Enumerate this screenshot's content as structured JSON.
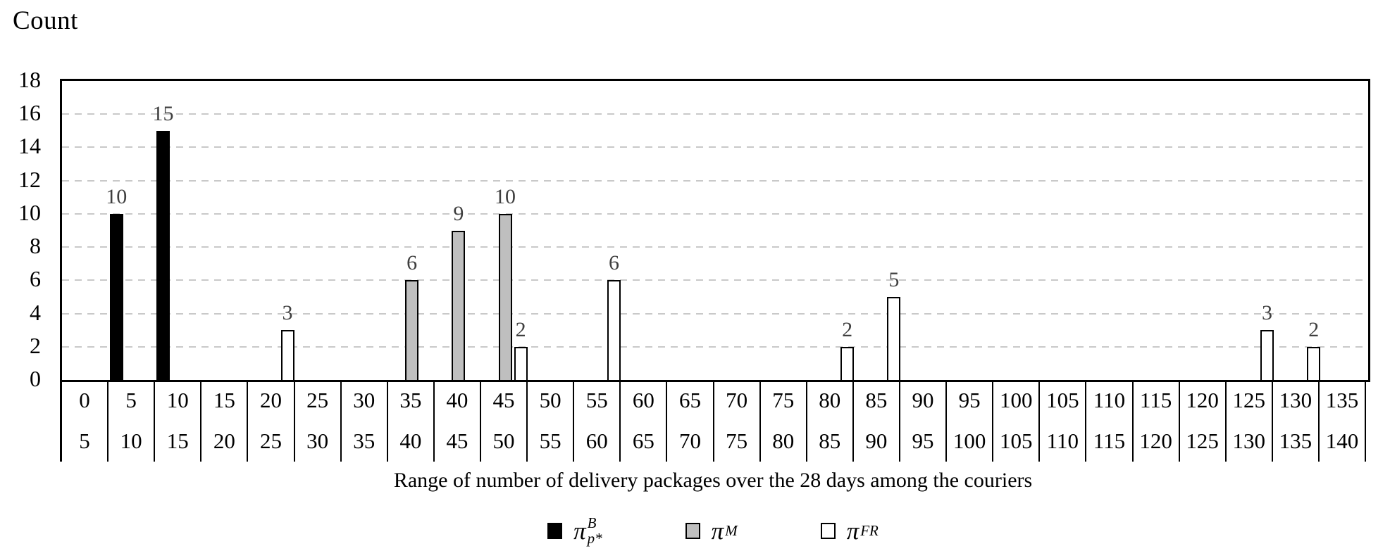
{
  "chart_data": {
    "type": "bar",
    "variant": "clustered-histogram",
    "title": "Count",
    "xlabel": "Range of number of delivery packages over the 28 days among the couriers",
    "ylabel": "Count",
    "ylim": [
      0,
      18
    ],
    "yticks": [
      0,
      2,
      4,
      6,
      8,
      10,
      12,
      14,
      16,
      18
    ],
    "grid": "horizontal-dashed",
    "grid_color": "#c9c9c9",
    "bar_label_color": "#3f3f3f",
    "legend_position": "bottom-center",
    "bins": [
      {
        "lo": "0",
        "hi": "5"
      },
      {
        "lo": "5",
        "hi": "10"
      },
      {
        "lo": "10",
        "hi": "15"
      },
      {
        "lo": "15",
        "hi": "20"
      },
      {
        "lo": "20",
        "hi": "25"
      },
      {
        "lo": "25",
        "hi": "30"
      },
      {
        "lo": "30",
        "hi": "35"
      },
      {
        "lo": "35",
        "hi": "40"
      },
      {
        "lo": "40",
        "hi": "45"
      },
      {
        "lo": "45",
        "hi": "50"
      },
      {
        "lo": "50",
        "hi": "55"
      },
      {
        "lo": "55",
        "hi": "60"
      },
      {
        "lo": "60",
        "hi": "65"
      },
      {
        "lo": "65",
        "hi": "70"
      },
      {
        "lo": "70",
        "hi": "75"
      },
      {
        "lo": "75",
        "hi": "80"
      },
      {
        "lo": "80",
        "hi": "85"
      },
      {
        "lo": "85",
        "hi": "90"
      },
      {
        "lo": "90",
        "hi": "95"
      },
      {
        "lo": "95",
        "hi": "100"
      },
      {
        "lo": "100",
        "hi": "105"
      },
      {
        "lo": "105",
        "hi": "110"
      },
      {
        "lo": "110",
        "hi": "115"
      },
      {
        "lo": "115",
        "hi": "120"
      },
      {
        "lo": "120",
        "hi": "125"
      },
      {
        "lo": "125",
        "hi": "130"
      },
      {
        "lo": "130",
        "hi": "135"
      },
      {
        "lo": "135",
        "hi": "140"
      }
    ],
    "series": [
      {
        "name": "pi-B-pstar",
        "legend": {
          "base": "π",
          "sup": "B",
          "sub": "p*"
        },
        "fill": "#000000",
        "border": "#000000",
        "values": [
          0,
          10,
          15,
          0,
          0,
          0,
          0,
          0,
          0,
          0,
          0,
          0,
          0,
          0,
          0,
          0,
          0,
          0,
          0,
          0,
          0,
          0,
          0,
          0,
          0,
          0,
          0,
          0
        ]
      },
      {
        "name": "pi-M",
        "legend": {
          "base": "π",
          "sup": "M",
          "sub": ""
        },
        "fill": "#bfbfbf",
        "border": "#000000",
        "values": [
          0,
          0,
          0,
          0,
          0,
          0,
          0,
          6,
          9,
          10,
          0,
          0,
          0,
          0,
          0,
          0,
          0,
          0,
          0,
          0,
          0,
          0,
          0,
          0,
          0,
          0,
          0,
          0
        ]
      },
      {
        "name": "pi-FR",
        "legend": {
          "base": "π",
          "sup": "FR",
          "sub": ""
        },
        "fill": "#ffffff",
        "border": "#000000",
        "values": [
          0,
          0,
          0,
          0,
          3,
          0,
          0,
          0,
          0,
          2,
          0,
          6,
          0,
          0,
          0,
          0,
          2,
          5,
          0,
          0,
          0,
          0,
          0,
          0,
          0,
          3,
          2,
          0
        ]
      }
    ]
  }
}
